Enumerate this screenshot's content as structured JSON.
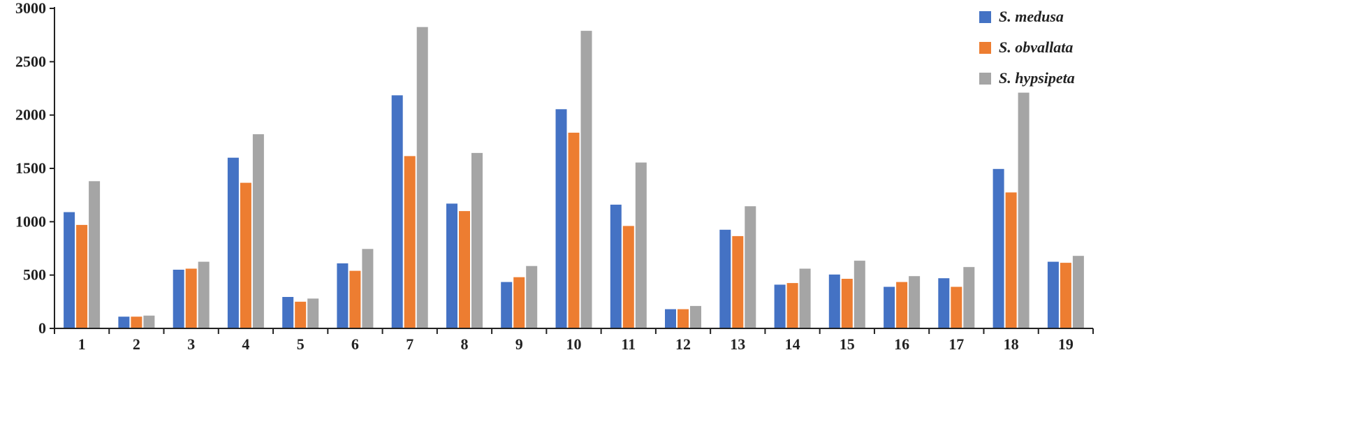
{
  "chart_data": {
    "type": "bar",
    "title": "",
    "xlabel": "",
    "ylabel": "",
    "ylim": [
      0,
      3000
    ],
    "yticks": [
      0,
      500,
      1000,
      1500,
      2000,
      2500,
      3000
    ],
    "grid": false,
    "legend_position": "top-right",
    "categories": [
      "1",
      "2",
      "3",
      "4",
      "5",
      "6",
      "7",
      "8",
      "9",
      "10",
      "11",
      "12",
      "13",
      "14",
      "15",
      "16",
      "17",
      "18",
      "19"
    ],
    "series": [
      {
        "name": "S. medusa",
        "color": "#4472C4",
        "values": [
          1090,
          110,
          550,
          1600,
          295,
          610,
          2185,
          1170,
          435,
          2055,
          1160,
          180,
          925,
          410,
          505,
          390,
          470,
          1495,
          625
        ]
      },
      {
        "name": "S. obvallata",
        "color": "#ED7D31",
        "values": [
          970,
          110,
          560,
          1365,
          250,
          540,
          1615,
          1100,
          480,
          1835,
          960,
          180,
          865,
          425,
          465,
          435,
          390,
          1275,
          615
        ]
      },
      {
        "name": "S. hypsipeta",
        "color": "#A5A5A5",
        "values": [
          1380,
          120,
          625,
          1820,
          280,
          745,
          2825,
          1645,
          585,
          2790,
          1555,
          210,
          1145,
          560,
          635,
          490,
          575,
          2210,
          680
        ]
      }
    ]
  }
}
